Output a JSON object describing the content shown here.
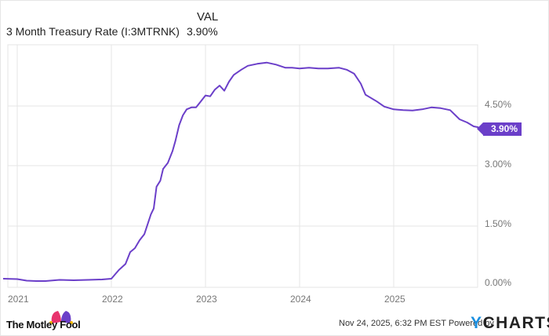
{
  "legend": {
    "header": "VAL",
    "series_name": "3 Month Treasury Rate (I:3MTRNK)",
    "series_value": "3.90%"
  },
  "current_badge": "3.90%",
  "footer": {
    "brand": "The Motley Fool",
    "timestamp": "Nov 24, 2025, 6:32 PM EST",
    "powered_by": "Powered by",
    "provider_y": "Y",
    "provider_rest": "CHARTS"
  },
  "colors": {
    "line": "#6b3fc9",
    "grid": "#e6e6e6",
    "badge": "#6b3fc9",
    "ycharts_blue": "#1a8fe0"
  },
  "chart_data": {
    "type": "line",
    "title": "3 Month Treasury Rate (I:3MTRNK)",
    "xlabel": "",
    "ylabel": "",
    "ylim": [
      0,
      6.0
    ],
    "y_ticks": [
      "0.00%",
      "1.50%",
      "3.00%",
      "4.50%"
    ],
    "x_ticks": [
      "2021",
      "2022",
      "2023",
      "2024",
      "2025"
    ],
    "grid": true,
    "legend_position": "top-left",
    "last_value": "3.90%",
    "series": [
      {
        "name": "3 Month Treasury Rate (I:3MTRNK)",
        "x": [
          2020.85,
          2021.0,
          2021.1,
          2021.2,
          2021.3,
          2021.45,
          2021.6,
          2021.75,
          2021.9,
          2022.0,
          2022.08,
          2022.15,
          2022.2,
          2022.25,
          2022.3,
          2022.35,
          2022.42,
          2022.45,
          2022.48,
          2022.52,
          2022.55,
          2022.6,
          2022.65,
          2022.68,
          2022.72,
          2022.76,
          2022.8,
          2022.85,
          2022.9,
          2022.95,
          2023.0,
          2023.05,
          2023.1,
          2023.15,
          2023.2,
          2023.25,
          2023.3,
          2023.38,
          2023.45,
          2023.55,
          2023.65,
          2023.75,
          2023.85,
          2023.92,
          2024.0,
          2024.1,
          2024.2,
          2024.3,
          2024.42,
          2024.5,
          2024.58,
          2024.65,
          2024.7,
          2024.75,
          2024.82,
          2024.9,
          2025.0,
          2025.1,
          2025.2,
          2025.3,
          2025.4,
          2025.5,
          2025.6,
          2025.7,
          2025.78,
          2025.85,
          2025.9
        ],
        "values": [
          0.08,
          0.07,
          0.03,
          0.02,
          0.02,
          0.05,
          0.04,
          0.05,
          0.06,
          0.08,
          0.3,
          0.45,
          0.75,
          0.85,
          1.05,
          1.2,
          1.7,
          1.85,
          2.4,
          2.55,
          2.85,
          3.0,
          3.3,
          3.55,
          3.95,
          4.2,
          4.35,
          4.4,
          4.4,
          4.55,
          4.7,
          4.68,
          4.85,
          4.95,
          4.82,
          5.05,
          5.22,
          5.35,
          5.45,
          5.5,
          5.53,
          5.48,
          5.4,
          5.4,
          5.38,
          5.4,
          5.38,
          5.38,
          5.4,
          5.35,
          5.25,
          5.0,
          4.72,
          4.65,
          4.55,
          4.42,
          4.35,
          4.33,
          4.32,
          4.35,
          4.4,
          4.38,
          4.33,
          4.1,
          4.02,
          3.92,
          3.9
        ]
      }
    ]
  }
}
